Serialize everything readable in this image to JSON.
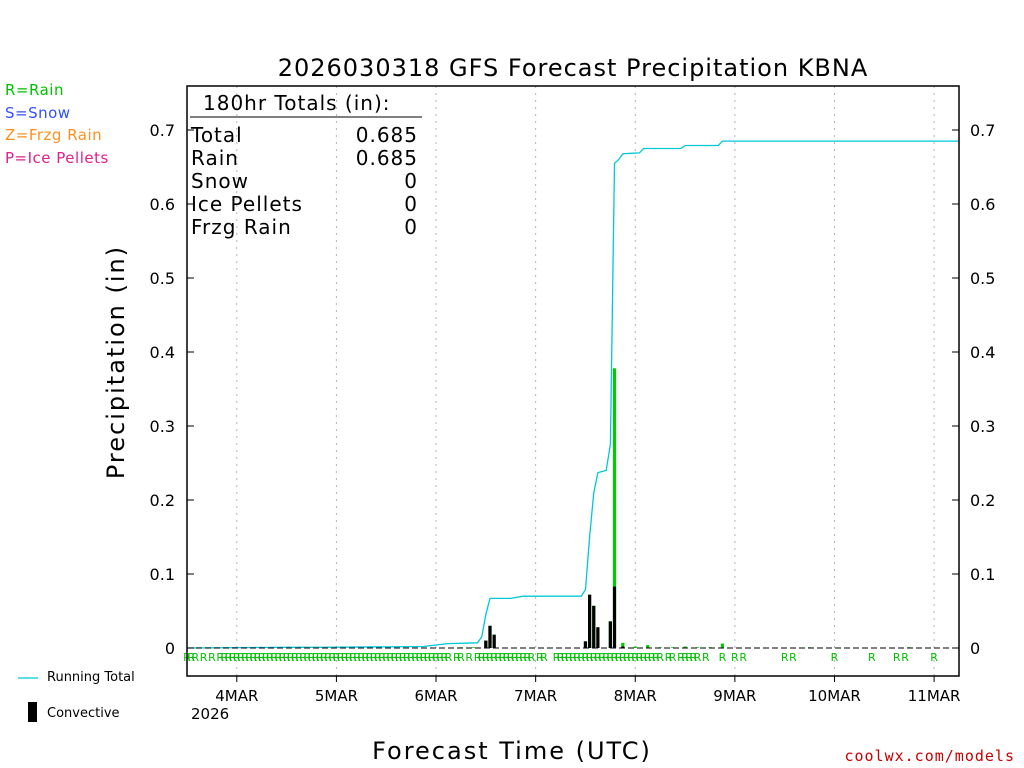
{
  "title": "2026030318 GFS Forecast Precipitation KBNA",
  "type_legend": [
    {
      "text": "R=Rain",
      "color": "#00c000"
    },
    {
      "text": "S=Snow",
      "color": "#3050ff"
    },
    {
      "text": "Z=Frzg Rain",
      "color": "#ff9020"
    },
    {
      "text": "P=Ice Pellets",
      "color": "#e0208c"
    }
  ],
  "totals_box": {
    "header": "180hr Totals (in):",
    "rows": [
      {
        "label": "Total",
        "value": "0.685"
      },
      {
        "label": "Rain",
        "value": "0.685"
      },
      {
        "label": "Snow",
        "value": "0"
      },
      {
        "label": "Ice Pellets",
        "value": "0"
      },
      {
        "label": "Frzg Rain",
        "value": "0"
      }
    ]
  },
  "bottom_legend": {
    "running_total_label": "Running Total",
    "convective_label": "Convective"
  },
  "credit": "coolwx.com/models",
  "chart_data": {
    "type": "bar",
    "title": "2026030318 GFS Forecast Precipitation KBNA",
    "xlabel": "Forecast Time (UTC)",
    "ylabel": "Precipitation (in)",
    "ylim": [
      -0.004,
      0.76
    ],
    "xlim_hours": [
      -6,
      180
    ],
    "grid": "vertical dotted at day boundaries",
    "yticks": [
      0,
      0.1,
      0.2,
      0.3,
      0.4,
      0.5,
      0.6,
      0.7
    ],
    "ytick_labels": [
      "0",
      "0.1",
      "0.2",
      "0.3",
      "0.4",
      "0.5",
      "0.6",
      "0.7"
    ],
    "xticks_hours": [
      6,
      30,
      54,
      78,
      102,
      126,
      150,
      174
    ],
    "xtick_labels": [
      "4MAR",
      "5MAR",
      "6MAR",
      "7MAR",
      "8MAR",
      "9MAR",
      "10MAR",
      "11MAR"
    ],
    "x_year_label": "2026",
    "series": [
      {
        "name": "Total precipitation (3-hr)",
        "color": "#00cc00",
        "points": [
          {
            "hour": 60,
            "value": 0.001
          },
          {
            "hour": 63,
            "value": 0.001
          },
          {
            "hour": 66,
            "value": 0.01
          },
          {
            "hour": 67,
            "value": 0.03
          },
          {
            "hour": 68,
            "value": 0.018
          },
          {
            "hour": 90,
            "value": 0.009
          },
          {
            "hour": 91,
            "value": 0.072
          },
          {
            "hour": 92,
            "value": 0.057
          },
          {
            "hour": 93,
            "value": 0.028
          },
          {
            "hour": 96,
            "value": 0.036
          },
          {
            "hour": 97,
            "value": 0.378
          },
          {
            "hour": 99,
            "value": 0.007
          },
          {
            "hour": 102,
            "value": 0.002
          },
          {
            "hour": 105,
            "value": 0.004
          },
          {
            "hour": 108,
            "value": 0.001
          },
          {
            "hour": 111,
            "value": 0.001
          },
          {
            "hour": 114,
            "value": 0.002
          },
          {
            "hour": 117,
            "value": 0.001
          },
          {
            "hour": 120,
            "value": 0.001
          },
          {
            "hour": 123,
            "value": 0.006
          },
          {
            "hour": 144,
            "value": 0.001
          },
          {
            "hour": 168,
            "value": 0.001
          }
        ]
      },
      {
        "name": "Convective",
        "color": "#000000",
        "points": [
          {
            "hour": 66,
            "value": 0.01
          },
          {
            "hour": 67,
            "value": 0.03
          },
          {
            "hour": 68,
            "value": 0.018
          },
          {
            "hour": 90,
            "value": 0.009
          },
          {
            "hour": 91,
            "value": 0.072
          },
          {
            "hour": 92,
            "value": 0.057
          },
          {
            "hour": 93,
            "value": 0.028
          },
          {
            "hour": 96,
            "value": 0.036
          },
          {
            "hour": 97,
            "value": 0.083
          },
          {
            "hour": 99,
            "value": 0.002
          }
        ]
      },
      {
        "name": "Running Total",
        "color": "#00c8d8",
        "type": "line",
        "points": [
          {
            "hour": -6,
            "value": 0
          },
          {
            "hour": 18,
            "value": 0.001
          },
          {
            "hour": 27,
            "value": 0.001
          },
          {
            "hour": 51,
            "value": 0.002
          },
          {
            "hour": 54,
            "value": 0.004
          },
          {
            "hour": 57,
            "value": 0.006
          },
          {
            "hour": 64,
            "value": 0.007
          },
          {
            "hour": 65,
            "value": 0.015
          },
          {
            "hour": 66,
            "value": 0.045
          },
          {
            "hour": 67,
            "value": 0.067
          },
          {
            "hour": 72,
            "value": 0.067
          },
          {
            "hour": 75,
            "value": 0.07
          },
          {
            "hour": 89,
            "value": 0.07
          },
          {
            "hour": 90,
            "value": 0.079
          },
          {
            "hour": 91,
            "value": 0.15
          },
          {
            "hour": 92,
            "value": 0.21
          },
          {
            "hour": 93,
            "value": 0.237
          },
          {
            "hour": 95,
            "value": 0.24
          },
          {
            "hour": 96,
            "value": 0.275
          },
          {
            "hour": 97,
            "value": 0.655
          },
          {
            "hour": 98,
            "value": 0.66
          },
          {
            "hour": 99,
            "value": 0.668
          },
          {
            "hour": 103,
            "value": 0.669
          },
          {
            "hour": 104,
            "value": 0.675
          },
          {
            "hour": 113,
            "value": 0.675
          },
          {
            "hour": 114,
            "value": 0.679
          },
          {
            "hour": 122,
            "value": 0.679
          },
          {
            "hour": 123,
            "value": 0.685
          },
          {
            "hour": 180,
            "value": 0.685
          }
        ]
      }
    ],
    "precip_type_marks": [
      {
        "hour": -6,
        "letter": "R"
      },
      {
        "hour": -5,
        "letter": "R"
      },
      {
        "hour": -4,
        "letter": "R"
      },
      {
        "hour": -2,
        "letter": "R"
      },
      {
        "hour": 0,
        "letter": "R"
      },
      {
        "hour": 2,
        "letter": "R"
      },
      {
        "hour": 3,
        "letter": "R"
      },
      {
        "hour": 4,
        "letter": "R"
      },
      {
        "hour": 5,
        "letter": "R"
      },
      {
        "hour": 6,
        "letter": "R"
      },
      {
        "hour": 7,
        "letter": "R"
      },
      {
        "hour": 8,
        "letter": "R"
      },
      {
        "hour": 9,
        "letter": "R"
      },
      {
        "hour": 10,
        "letter": "R"
      },
      {
        "hour": 11,
        "letter": "R"
      },
      {
        "hour": 12,
        "letter": "R"
      },
      {
        "hour": 13,
        "letter": "R"
      },
      {
        "hour": 14,
        "letter": "R"
      },
      {
        "hour": 15,
        "letter": "R"
      },
      {
        "hour": 16,
        "letter": "R"
      },
      {
        "hour": 17,
        "letter": "R"
      },
      {
        "hour": 18,
        "letter": "R"
      },
      {
        "hour": 19,
        "letter": "R"
      },
      {
        "hour": 20,
        "letter": "R"
      },
      {
        "hour": 21,
        "letter": "R"
      },
      {
        "hour": 22,
        "letter": "R"
      },
      {
        "hour": 23,
        "letter": "R"
      },
      {
        "hour": 24,
        "letter": "R"
      },
      {
        "hour": 25,
        "letter": "R"
      },
      {
        "hour": 26,
        "letter": "R"
      },
      {
        "hour": 27,
        "letter": "R"
      },
      {
        "hour": 28,
        "letter": "R"
      },
      {
        "hour": 29,
        "letter": "R"
      },
      {
        "hour": 30,
        "letter": "R"
      },
      {
        "hour": 31,
        "letter": "R"
      },
      {
        "hour": 32,
        "letter": "R"
      },
      {
        "hour": 33,
        "letter": "R"
      },
      {
        "hour": 34,
        "letter": "R"
      },
      {
        "hour": 35,
        "letter": "R"
      },
      {
        "hour": 36,
        "letter": "R"
      },
      {
        "hour": 37,
        "letter": "R"
      },
      {
        "hour": 38,
        "letter": "R"
      },
      {
        "hour": 39,
        "letter": "R"
      },
      {
        "hour": 40,
        "letter": "R"
      },
      {
        "hour": 41,
        "letter": "R"
      },
      {
        "hour": 42,
        "letter": "R"
      },
      {
        "hour": 43,
        "letter": "R"
      },
      {
        "hour": 44,
        "letter": "R"
      },
      {
        "hour": 45,
        "letter": "R"
      },
      {
        "hour": 46,
        "letter": "R"
      },
      {
        "hour": 47,
        "letter": "R"
      },
      {
        "hour": 48,
        "letter": "R"
      },
      {
        "hour": 49,
        "letter": "R"
      },
      {
        "hour": 50,
        "letter": "R"
      },
      {
        "hour": 51,
        "letter": "R"
      },
      {
        "hour": 52,
        "letter": "R"
      },
      {
        "hour": 53,
        "letter": "R"
      },
      {
        "hour": 54,
        "letter": "R"
      },
      {
        "hour": 55,
        "letter": "R"
      },
      {
        "hour": 56,
        "letter": "R"
      },
      {
        "hour": 57,
        "letter": "R"
      },
      {
        "hour": 59,
        "letter": "R"
      },
      {
        "hour": 60,
        "letter": "R"
      },
      {
        "hour": 62,
        "letter": "R"
      },
      {
        "hour": 64,
        "letter": "R"
      },
      {
        "hour": 65,
        "letter": "R"
      },
      {
        "hour": 66,
        "letter": "R"
      },
      {
        "hour": 67,
        "letter": "R"
      },
      {
        "hour": 68,
        "letter": "R"
      },
      {
        "hour": 69,
        "letter": "R"
      },
      {
        "hour": 70,
        "letter": "R"
      },
      {
        "hour": 71,
        "letter": "R"
      },
      {
        "hour": 72,
        "letter": "R"
      },
      {
        "hour": 73,
        "letter": "R"
      },
      {
        "hour": 74,
        "letter": "R"
      },
      {
        "hour": 75,
        "letter": "R"
      },
      {
        "hour": 76,
        "letter": "R"
      },
      {
        "hour": 77,
        "letter": "R"
      },
      {
        "hour": 79,
        "letter": "R"
      },
      {
        "hour": 80,
        "letter": "R"
      },
      {
        "hour": 83,
        "letter": "R"
      },
      {
        "hour": 84,
        "letter": "R"
      },
      {
        "hour": 85,
        "letter": "R"
      },
      {
        "hour": 86,
        "letter": "R"
      },
      {
        "hour": 87,
        "letter": "R"
      },
      {
        "hour": 88,
        "letter": "R"
      },
      {
        "hour": 89,
        "letter": "R"
      },
      {
        "hour": 90,
        "letter": "R"
      },
      {
        "hour": 91,
        "letter": "R"
      },
      {
        "hour": 92,
        "letter": "R"
      },
      {
        "hour": 93,
        "letter": "R"
      },
      {
        "hour": 94,
        "letter": "R"
      },
      {
        "hour": 95,
        "letter": "R"
      },
      {
        "hour": 96,
        "letter": "R"
      },
      {
        "hour": 97,
        "letter": "R"
      },
      {
        "hour": 98,
        "letter": "R"
      },
      {
        "hour": 99,
        "letter": "R"
      },
      {
        "hour": 100,
        "letter": "R"
      },
      {
        "hour": 101,
        "letter": "R"
      },
      {
        "hour": 102,
        "letter": "R"
      },
      {
        "hour": 103,
        "letter": "R"
      },
      {
        "hour": 104,
        "letter": "R"
      },
      {
        "hour": 105,
        "letter": "R"
      },
      {
        "hour": 106,
        "letter": "R"
      },
      {
        "hour": 107,
        "letter": "R"
      },
      {
        "hour": 108,
        "letter": "R"
      },
      {
        "hour": 110,
        "letter": "R"
      },
      {
        "hour": 111,
        "letter": "R"
      },
      {
        "hour": 113,
        "letter": "R"
      },
      {
        "hour": 114,
        "letter": "R"
      },
      {
        "hour": 115,
        "letter": "R"
      },
      {
        "hour": 116,
        "letter": "R"
      },
      {
        "hour": 117,
        "letter": "R"
      },
      {
        "hour": 119,
        "letter": "R"
      },
      {
        "hour": 123,
        "letter": "R"
      },
      {
        "hour": 126,
        "letter": "R"
      },
      {
        "hour": 128,
        "letter": "R"
      },
      {
        "hour": 138,
        "letter": "R"
      },
      {
        "hour": 140,
        "letter": "R"
      },
      {
        "hour": 150,
        "letter": "R"
      },
      {
        "hour": 159,
        "letter": "R"
      },
      {
        "hour": 165,
        "letter": "R"
      },
      {
        "hour": 167,
        "letter": "R"
      },
      {
        "hour": 174,
        "letter": "R"
      }
    ]
  }
}
